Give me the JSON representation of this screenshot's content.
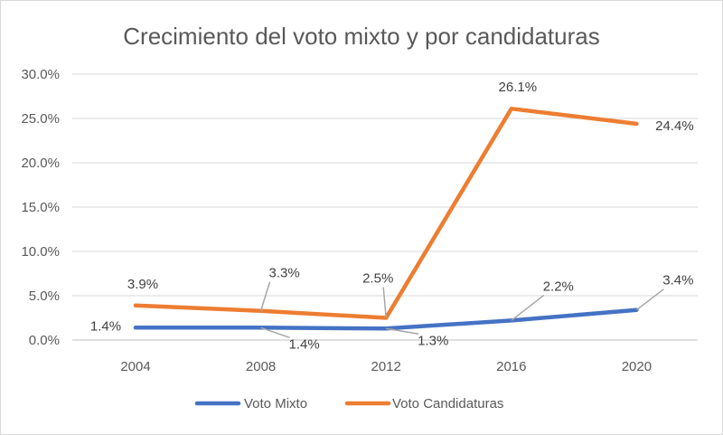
{
  "chart_data": {
    "type": "line",
    "title": "Crecimiento del voto mixto y por candidaturas",
    "xlabel": "",
    "ylabel": "",
    "categories": [
      "2004",
      "2008",
      "2012",
      "2016",
      "2020"
    ],
    "ylim": [
      0,
      30
    ],
    "yticks": [
      "0.0%",
      "5.0%",
      "10.0%",
      "15.0%",
      "20.0%",
      "25.0%",
      "30.0%"
    ],
    "grid": true,
    "legend": "bottom",
    "series": [
      {
        "name": "Voto Mixto",
        "color": "#4472C4",
        "values": [
          1.4,
          1.4,
          1.3,
          2.2,
          3.4
        ],
        "labels": [
          "1.4%",
          "1.4%",
          "1.3%",
          "2.2%",
          "3.4%"
        ]
      },
      {
        "name": "Voto Candidaturas",
        "color": "#ED7D31",
        "values": [
          3.9,
          3.3,
          2.5,
          26.1,
          24.4
        ],
        "labels": [
          "3.9%",
          "3.3%",
          "2.5%",
          "26.1%",
          "24.4%"
        ]
      }
    ]
  }
}
